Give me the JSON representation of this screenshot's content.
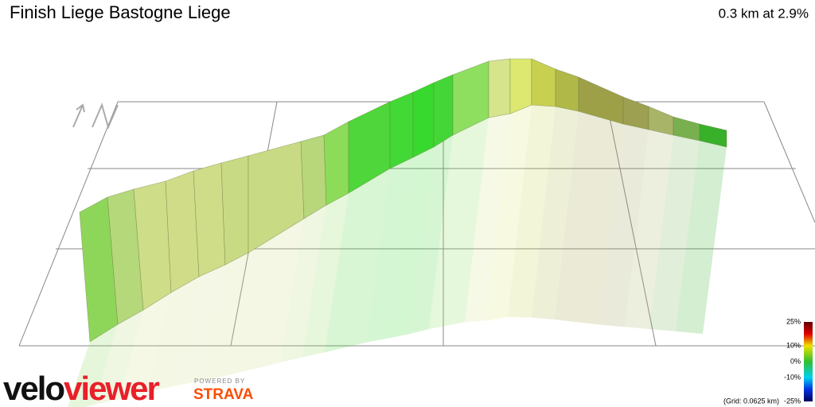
{
  "header": {
    "title": "Finish Liege Bastogne Liege",
    "summary": "0.3 km at 2.9%"
  },
  "legend": {
    "labels": [
      "25%",
      "10%",
      "0%",
      "-10%",
      "-25%"
    ],
    "grid_note": "(Grid: 0.0625 km)"
  },
  "branding": {
    "logo_part1": "velo",
    "logo_part2": "viewer",
    "powered_by": "POWERED BY",
    "partner": "STRAVA"
  }
}
